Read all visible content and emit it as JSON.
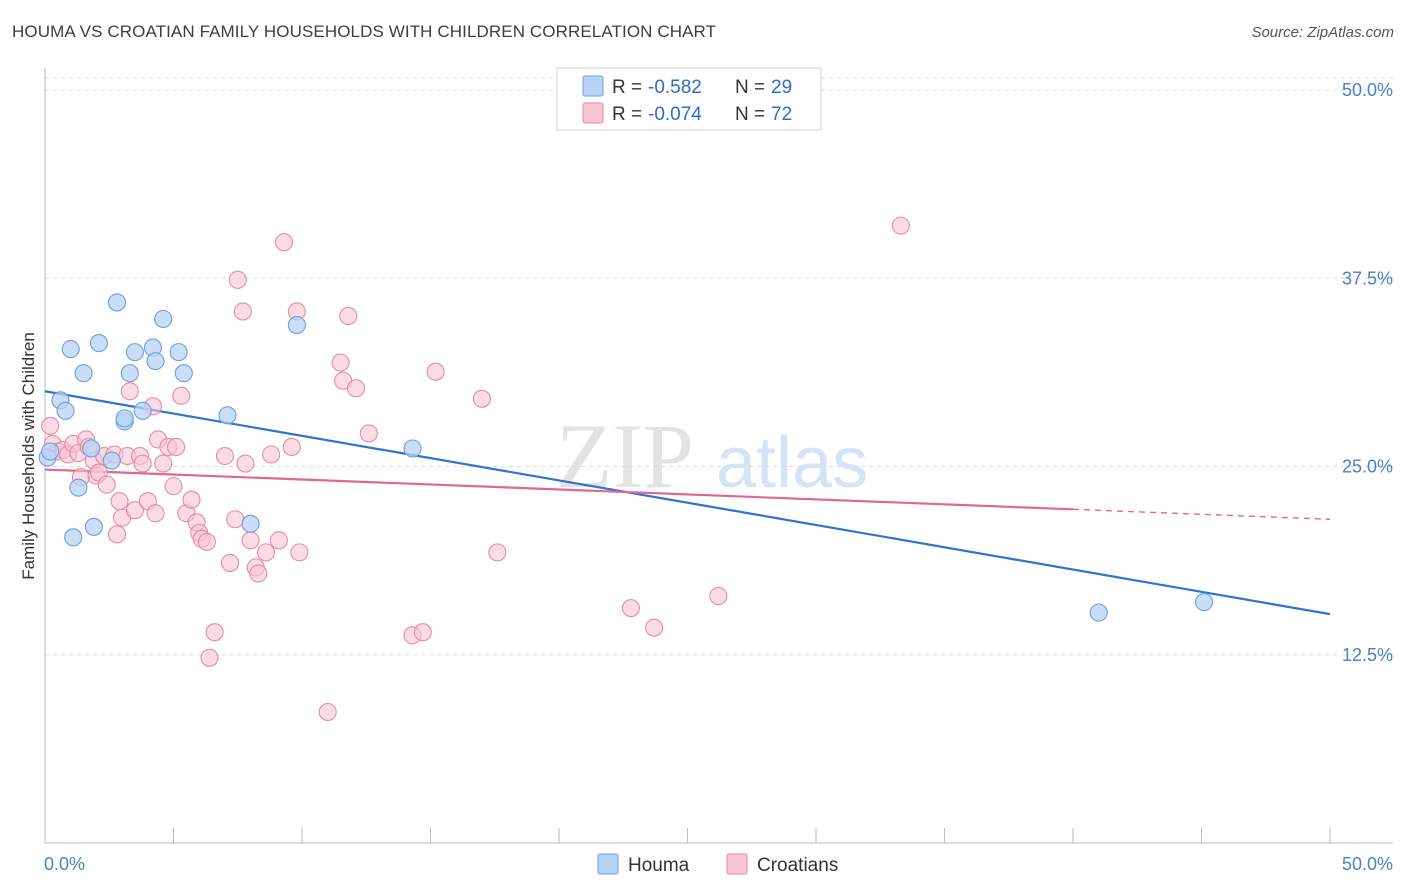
{
  "title": "HOUMA VS CROATIAN FAMILY HOUSEHOLDS WITH CHILDREN CORRELATION CHART",
  "source": "Source: ZipAtlas.com",
  "watermark": {
    "zip": "ZIP",
    "atlas": "atlas"
  },
  "colors": {
    "houma_fill": "#b8d3f5",
    "houma_stroke": "#6b9fdc",
    "houma_line": "#2f72d0",
    "croatian_fill": "#f9c4d4",
    "croatian_stroke": "#e68aa8",
    "croatian_line": "#e0678f",
    "tick_text": "#4a7fc9",
    "grid": "#dcdcdc"
  },
  "legend": {
    "houma": {
      "r_label": "R = ",
      "r_value": "-0.582",
      "n_label": "N = ",
      "n_value": "29"
    },
    "croatian": {
      "r_label": "R = ",
      "r_value": "-0.074",
      "n_label": "N = ",
      "n_value": "72"
    }
  },
  "bottom_legend": {
    "houma": "Houma",
    "croatian": "Croatians"
  },
  "chart_data": {
    "type": "scatter",
    "title": "HOUMA VS CROATIAN FAMILY HOUSEHOLDS WITH CHILDREN CORRELATION CHART",
    "xlabel": "",
    "ylabel": "Family Households with Children",
    "xlim": [
      0,
      50
    ],
    "ylim": [
      0,
      52
    ],
    "x_tick_labels": {
      "left": "0.0%",
      "right": "50.0%"
    },
    "y_ticks": [
      {
        "value": 12.5,
        "label": "12.5%"
      },
      {
        "value": 25.0,
        "label": "25.0%"
      },
      {
        "value": 37.5,
        "label": "37.5%"
      },
      {
        "value": 50.0,
        "label": "50.0%"
      }
    ],
    "series": [
      {
        "name": "Houma",
        "r": -0.582,
        "n": 29,
        "trend": {
          "x0": 0.0,
          "y0": 30.0,
          "x1": 50.0,
          "y1": 15.2,
          "dashed_from": null
        },
        "points": [
          [
            0.1,
            25.6
          ],
          [
            0.2,
            26.0
          ],
          [
            0.6,
            29.4
          ],
          [
            0.8,
            28.7
          ],
          [
            1.0,
            32.8
          ],
          [
            1.1,
            20.3
          ],
          [
            1.3,
            23.6
          ],
          [
            1.5,
            31.2
          ],
          [
            1.8,
            26.2
          ],
          [
            1.9,
            21.0
          ],
          [
            2.1,
            33.2
          ],
          [
            2.6,
            25.4
          ],
          [
            2.8,
            35.9
          ],
          [
            3.1,
            28.0
          ],
          [
            3.1,
            28.2
          ],
          [
            3.3,
            31.2
          ],
          [
            3.5,
            32.6
          ],
          [
            3.8,
            28.7
          ],
          [
            4.2,
            32.9
          ],
          [
            4.3,
            32.0
          ],
          [
            4.6,
            34.8
          ],
          [
            5.2,
            32.6
          ],
          [
            5.4,
            31.2
          ],
          [
            7.1,
            28.4
          ],
          [
            8.0,
            21.2
          ],
          [
            9.8,
            34.4
          ],
          [
            14.3,
            26.2
          ],
          [
            41.0,
            15.3
          ],
          [
            45.1,
            16.0
          ]
        ]
      },
      {
        "name": "Croatians",
        "r": -0.074,
        "n": 72,
        "trend": {
          "x0": 0.0,
          "y0": 24.8,
          "x1": 50.0,
          "y1": 21.5,
          "dashed_from": 40.0
        },
        "points": [
          [
            0.2,
            27.7
          ],
          [
            0.3,
            26.5
          ],
          [
            0.5,
            26.0
          ],
          [
            0.7,
            26.1
          ],
          [
            0.9,
            25.8
          ],
          [
            1.1,
            26.5
          ],
          [
            1.3,
            25.9
          ],
          [
            1.4,
            24.3
          ],
          [
            1.6,
            26.8
          ],
          [
            1.7,
            26.3
          ],
          [
            1.9,
            25.4
          ],
          [
            2.0,
            24.4
          ],
          [
            2.1,
            24.6
          ],
          [
            2.3,
            25.7
          ],
          [
            2.4,
            23.8
          ],
          [
            2.7,
            25.8
          ],
          [
            2.8,
            20.5
          ],
          [
            2.9,
            22.7
          ],
          [
            3.0,
            21.6
          ],
          [
            3.2,
            25.7
          ],
          [
            3.3,
            30.0
          ],
          [
            3.5,
            22.1
          ],
          [
            3.7,
            25.7
          ],
          [
            3.8,
            25.2
          ],
          [
            4.0,
            22.7
          ],
          [
            4.2,
            29.0
          ],
          [
            4.3,
            21.9
          ],
          [
            4.4,
            26.8
          ],
          [
            4.6,
            25.2
          ],
          [
            4.8,
            26.3
          ],
          [
            5.0,
            23.7
          ],
          [
            5.1,
            26.3
          ],
          [
            5.3,
            29.7
          ],
          [
            5.5,
            21.9
          ],
          [
            5.7,
            22.8
          ],
          [
            5.9,
            21.3
          ],
          [
            6.0,
            20.6
          ],
          [
            6.1,
            20.2
          ],
          [
            6.3,
            20.0
          ],
          [
            6.4,
            12.3
          ],
          [
            6.6,
            14.0
          ],
          [
            7.0,
            25.7
          ],
          [
            7.2,
            18.6
          ],
          [
            7.4,
            21.5
          ],
          [
            7.5,
            37.4
          ],
          [
            7.7,
            35.3
          ],
          [
            7.8,
            25.2
          ],
          [
            8.0,
            20.1
          ],
          [
            8.2,
            18.3
          ],
          [
            8.3,
            17.9
          ],
          [
            8.6,
            19.3
          ],
          [
            8.8,
            25.8
          ],
          [
            9.1,
            20.1
          ],
          [
            9.3,
            39.9
          ],
          [
            9.6,
            26.3
          ],
          [
            9.8,
            35.3
          ],
          [
            9.9,
            19.3
          ],
          [
            11.0,
            8.7
          ],
          [
            11.5,
            31.9
          ],
          [
            11.6,
            30.7
          ],
          [
            11.8,
            35.0
          ],
          [
            12.1,
            30.2
          ],
          [
            12.6,
            27.2
          ],
          [
            14.3,
            13.8
          ],
          [
            14.7,
            14.0
          ],
          [
            15.2,
            31.3
          ],
          [
            17.0,
            29.5
          ],
          [
            17.6,
            19.3
          ],
          [
            22.8,
            15.6
          ],
          [
            23.7,
            14.3
          ],
          [
            26.2,
            16.4
          ],
          [
            33.3,
            41.0
          ]
        ]
      }
    ]
  }
}
